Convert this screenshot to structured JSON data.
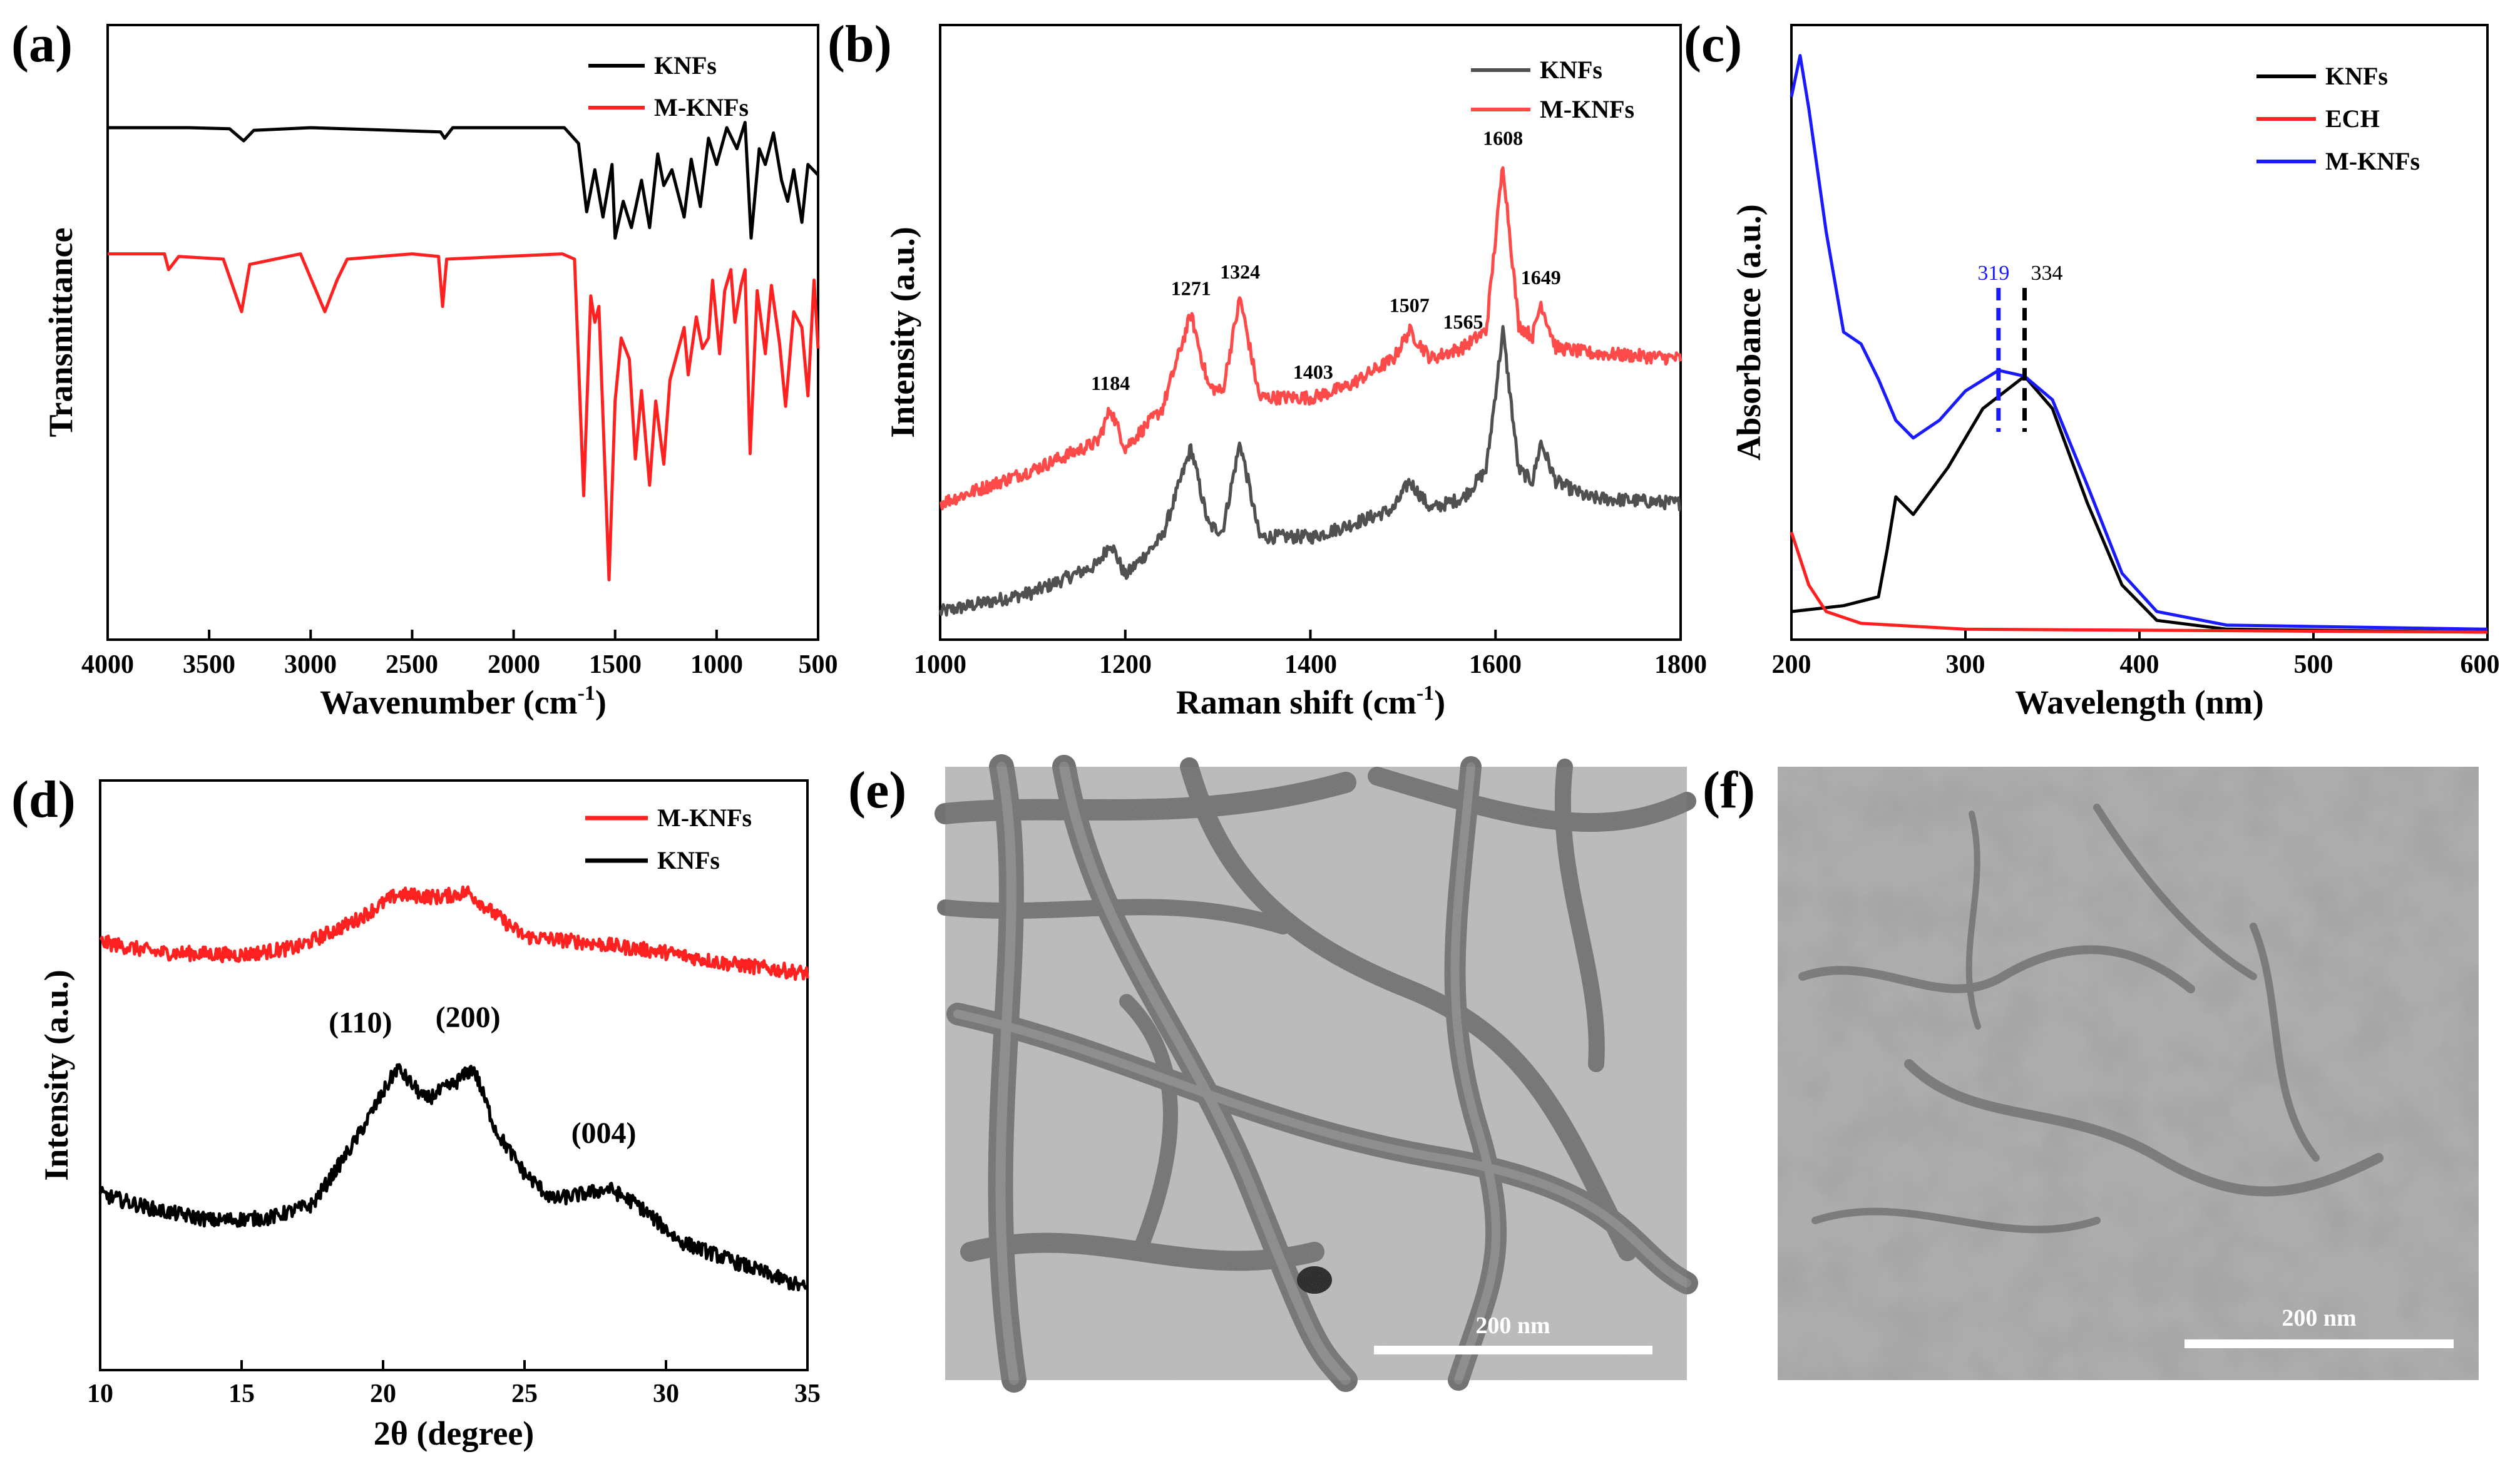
{
  "colors": {
    "black": "#000000",
    "red": "#ff2020",
    "blue": "#1a1aff",
    "gray": "#505050",
    "light_red": "#ff4a4a"
  },
  "chart_data": [
    {
      "id": "a",
      "panel_label": "(a)",
      "type": "line",
      "xlabel_main": "Wavenumber (cm",
      "xlabel_sup": "-1",
      "xlabel_end": ")",
      "ylabel": "Transmittance",
      "xlim": [
        4000,
        500
      ],
      "ylim": [
        0,
        10
      ],
      "xticks": [
        "4000",
        "3500",
        "3000",
        "2500",
        "2000",
        "1500",
        "1000",
        "500"
      ],
      "series": [
        {
          "name": "KNFs",
          "color": "#000000",
          "points": [
            [
              4000,
              9.0
            ],
            [
              3600,
              9.0
            ],
            [
              3400,
              8.98
            ],
            [
              3330,
              8.75
            ],
            [
              3280,
              8.95
            ],
            [
              3000,
              9.0
            ],
            [
              2360,
              8.92
            ],
            [
              2340,
              8.8
            ],
            [
              2300,
              9.0
            ],
            [
              1750,
              9.0
            ],
            [
              1680,
              8.7
            ],
            [
              1640,
              7.4
            ],
            [
              1600,
              8.2
            ],
            [
              1560,
              7.3
            ],
            [
              1515,
              8.3
            ],
            [
              1500,
              6.9
            ],
            [
              1460,
              7.6
            ],
            [
              1420,
              7.1
            ],
            [
              1370,
              8.0
            ],
            [
              1330,
              7.1
            ],
            [
              1290,
              8.5
            ],
            [
              1260,
              7.9
            ],
            [
              1220,
              8.2
            ],
            [
              1160,
              7.3
            ],
            [
              1125,
              8.4
            ],
            [
              1080,
              7.5
            ],
            [
              1040,
              8.8
            ],
            [
              1000,
              8.3
            ],
            [
              950,
              9.0
            ],
            [
              900,
              8.6
            ],
            [
              860,
              9.1
            ],
            [
              830,
              6.9
            ],
            [
              790,
              8.6
            ],
            [
              760,
              8.3
            ],
            [
              720,
              8.9
            ],
            [
              680,
              8.0
            ],
            [
              650,
              7.6
            ],
            [
              620,
              8.2
            ],
            [
              580,
              7.2
            ],
            [
              550,
              8.3
            ],
            [
              500,
              8.1
            ]
          ]
        },
        {
          "name": "M-KNFs",
          "color": "#ff2020",
          "points": [
            [
              4000,
              6.6
            ],
            [
              3720,
              6.6
            ],
            [
              3700,
              6.3
            ],
            [
              3650,
              6.55
            ],
            [
              3430,
              6.5
            ],
            [
              3340,
              5.5
            ],
            [
              3300,
              6.4
            ],
            [
              3050,
              6.6
            ],
            [
              2930,
              5.5
            ],
            [
              2870,
              6.1
            ],
            [
              2820,
              6.5
            ],
            [
              2500,
              6.6
            ],
            [
              2370,
              6.55
            ],
            [
              2350,
              5.6
            ],
            [
              2330,
              6.5
            ],
            [
              1760,
              6.6
            ],
            [
              1700,
              6.5
            ],
            [
              1655,
              2.0
            ],
            [
              1620,
              5.8
            ],
            [
              1600,
              5.3
            ],
            [
              1580,
              5.6
            ],
            [
              1530,
              0.4
            ],
            [
              1500,
              3.8
            ],
            [
              1470,
              5.0
            ],
            [
              1430,
              4.6
            ],
            [
              1400,
              2.7
            ],
            [
              1370,
              4.0
            ],
            [
              1330,
              2.2
            ],
            [
              1300,
              3.8
            ],
            [
              1260,
              2.6
            ],
            [
              1230,
              4.2
            ],
            [
              1160,
              5.2
            ],
            [
              1140,
              4.3
            ],
            [
              1100,
              5.4
            ],
            [
              1070,
              4.8
            ],
            [
              1040,
              5.0
            ],
            [
              1020,
              6.1
            ],
            [
              985,
              4.7
            ],
            [
              960,
              5.9
            ],
            [
              930,
              6.3
            ],
            [
              910,
              5.3
            ],
            [
              880,
              6.0
            ],
            [
              860,
              6.3
            ],
            [
              835,
              2.8
            ],
            [
              800,
              5.9
            ],
            [
              760,
              4.7
            ],
            [
              730,
              6.0
            ],
            [
              690,
              4.9
            ],
            [
              660,
              3.7
            ],
            [
              620,
              5.5
            ],
            [
              580,
              5.2
            ],
            [
              550,
              3.9
            ],
            [
              520,
              6.1
            ],
            [
              500,
              4.8
            ]
          ]
        }
      ]
    },
    {
      "id": "b",
      "panel_label": "(b)",
      "type": "line",
      "xlabel_main": "Raman shift (cm",
      "xlabel_sup": "-1",
      "xlabel_end": ")",
      "ylabel": "Intensity (a.u.)",
      "xlim": [
        1000,
        1800
      ],
      "ylim": [
        0,
        10
      ],
      "xticks": [
        "1000",
        "1200",
        "1400",
        "1600",
        "1800"
      ],
      "series": [
        {
          "name": "KNFs",
          "color": "#505050",
          "points": [
            [
              1000,
              0.25
            ],
            [
              1100,
              0.6
            ],
            [
              1170,
              1.1
            ],
            [
              1184,
              1.5
            ],
            [
              1200,
              0.9
            ],
            [
              1240,
              1.6
            ],
            [
              1271,
              3.2
            ],
            [
              1290,
              1.8
            ],
            [
              1305,
              1.7
            ],
            [
              1324,
              3.3
            ],
            [
              1345,
              1.6
            ],
            [
              1403,
              1.6
            ],
            [
              1440,
              1.8
            ],
            [
              1490,
              2.1
            ],
            [
              1507,
              2.6
            ],
            [
              1530,
              2.1
            ],
            [
              1565,
              2.3
            ],
            [
              1590,
              2.8
            ],
            [
              1608,
              5.3
            ],
            [
              1625,
              2.8
            ],
            [
              1640,
              2.6
            ],
            [
              1649,
              3.3
            ],
            [
              1665,
              2.6
            ],
            [
              1700,
              2.3
            ],
            [
              1800,
              2.2
            ]
          ]
        },
        {
          "name": "M-KNFs",
          "color": "#ff4a4a",
          "points": [
            [
              1000,
              2.2
            ],
            [
              1100,
              2.8
            ],
            [
              1170,
              3.3
            ],
            [
              1184,
              3.9
            ],
            [
              1200,
              3.2
            ],
            [
              1240,
              3.9
            ],
            [
              1271,
              5.6
            ],
            [
              1290,
              4.3
            ],
            [
              1305,
              4.2
            ],
            [
              1324,
              5.9
            ],
            [
              1345,
              4.1
            ],
            [
              1403,
              4.1
            ],
            [
              1440,
              4.3
            ],
            [
              1490,
              4.8
            ],
            [
              1507,
              5.3
            ],
            [
              1530,
              4.8
            ],
            [
              1565,
              5.0
            ],
            [
              1590,
              5.3
            ],
            [
              1608,
              8.3
            ],
            [
              1625,
              5.4
            ],
            [
              1640,
              5.2
            ],
            [
              1649,
              5.8
            ],
            [
              1665,
              5.0
            ],
            [
              1700,
              4.9
            ],
            [
              1800,
              4.8
            ]
          ]
        }
      ],
      "annotations": [
        {
          "x": 1184,
          "y": 3.9,
          "text": "1184"
        },
        {
          "x": 1271,
          "y": 5.6,
          "text": "1271"
        },
        {
          "x": 1324,
          "y": 5.9,
          "text": "1324"
        },
        {
          "x": 1403,
          "y": 4.1,
          "text": "1403"
        },
        {
          "x": 1507,
          "y": 5.3,
          "text": "1507"
        },
        {
          "x": 1565,
          "y": 5.0,
          "text": "1565"
        },
        {
          "x": 1608,
          "y": 8.3,
          "text": "1608"
        },
        {
          "x": 1649,
          "y": 5.8,
          "text": "1649"
        }
      ]
    },
    {
      "id": "c",
      "panel_label": "(c)",
      "type": "line",
      "xlabel_main": "Wavelength (nm)",
      "xlabel_sup": "",
      "xlabel_end": "",
      "ylabel": "Absorbance (a.u.)",
      "xlim": [
        200,
        600
      ],
      "ylim": [
        0,
        10
      ],
      "xticks": [
        "200",
        "300",
        "400",
        "500",
        "600"
      ],
      "series": [
        {
          "name": "KNFs",
          "color": "#000000",
          "points": [
            [
              200,
              0.35
            ],
            [
              230,
              0.45
            ],
            [
              250,
              0.6
            ],
            [
              255,
              1.4
            ],
            [
              260,
              2.3
            ],
            [
              270,
              2.0
            ],
            [
              290,
              2.8
            ],
            [
              310,
              3.8
            ],
            [
              334,
              4.35
            ],
            [
              350,
              3.8
            ],
            [
              370,
              2.2
            ],
            [
              390,
              0.8
            ],
            [
              410,
              0.2
            ],
            [
              450,
              0.05
            ],
            [
              600,
              0.0
            ]
          ]
        },
        {
          "name": "ECH",
          "color": "#ff2020",
          "points": [
            [
              200,
              1.7
            ],
            [
              210,
              0.8
            ],
            [
              220,
              0.35
            ],
            [
              240,
              0.15
            ],
            [
              300,
              0.05
            ],
            [
              600,
              0.0
            ]
          ]
        },
        {
          "name": "M-KNFs",
          "color": "#1a1aff",
          "points": [
            [
              200,
              9.1
            ],
            [
              205,
              9.8
            ],
            [
              210,
              8.9
            ],
            [
              220,
              6.8
            ],
            [
              230,
              5.1
            ],
            [
              240,
              4.9
            ],
            [
              250,
              4.3
            ],
            [
              260,
              3.6
            ],
            [
              270,
              3.3
            ],
            [
              285,
              3.6
            ],
            [
              300,
              4.1
            ],
            [
              319,
              4.45
            ],
            [
              334,
              4.35
            ],
            [
              350,
              3.95
            ],
            [
              370,
              2.5
            ],
            [
              390,
              1.0
            ],
            [
              410,
              0.35
            ],
            [
              450,
              0.12
            ],
            [
              600,
              0.05
            ]
          ]
        }
      ],
      "markers": [
        {
          "x": 319,
          "text": "319",
          "color": "#1a1aff"
        },
        {
          "x": 334,
          "text": "334",
          "color": "#000000"
        }
      ]
    },
    {
      "id": "d",
      "panel_label": "(d)",
      "type": "line",
      "xlabel_main": "2θ (degree)",
      "xlabel_sup": "",
      "xlabel_end": "",
      "ylabel": "Intensity (a.u.)",
      "xlim": [
        10,
        35
      ],
      "ylim": [
        0,
        10
      ],
      "xticks": [
        "10",
        "15",
        "20",
        "25",
        "30",
        "35"
      ],
      "series": [
        {
          "name": "M-KNFs",
          "color": "#ff2020",
          "points": [
            [
              10,
              7.8
            ],
            [
              12,
              7.6
            ],
            [
              15,
              7.55
            ],
            [
              17,
              7.7
            ],
            [
              19,
              8.2
            ],
            [
              20.5,
              8.7
            ],
            [
              22,
              8.65
            ],
            [
              23,
              8.75
            ],
            [
              24,
              8.3
            ],
            [
              25,
              7.9
            ],
            [
              27,
              7.8
            ],
            [
              28.5,
              7.7
            ],
            [
              30,
              7.6
            ],
            [
              32,
              7.4
            ],
            [
              35,
              7.2
            ]
          ]
        },
        {
          "name": "KNFs",
          "color": "#000000",
          "points": [
            [
              10,
              3.0
            ],
            [
              12,
              2.7
            ],
            [
              14,
              2.5
            ],
            [
              16,
              2.55
            ],
            [
              17.5,
              2.8
            ],
            [
              19,
              4.0
            ],
            [
              20.5,
              5.4
            ],
            [
              21.5,
              4.8
            ],
            [
              22.5,
              5.1
            ],
            [
              23.2,
              5.4
            ],
            [
              24,
              4.2
            ],
            [
              25,
              3.4
            ],
            [
              26,
              2.9
            ],
            [
              27,
              3.0
            ],
            [
              28,
              3.1
            ],
            [
              29,
              2.8
            ],
            [
              30.5,
              2.1
            ],
            [
              32,
              1.8
            ],
            [
              35,
              1.2
            ]
          ]
        }
      ],
      "annotations": [
        {
          "x": 19.2,
          "y": 5.6,
          "text": "(110)"
        },
        {
          "x": 23.0,
          "y": 5.7,
          "text": "(200)"
        },
        {
          "x": 27.8,
          "y": 3.5,
          "text": "(004)"
        }
      ]
    }
  ],
  "images": [
    {
      "id": "e",
      "panel_label": "(e)",
      "scale_label": "200 nm"
    },
    {
      "id": "f",
      "panel_label": "(f)",
      "scale_label": "200 nm"
    }
  ]
}
